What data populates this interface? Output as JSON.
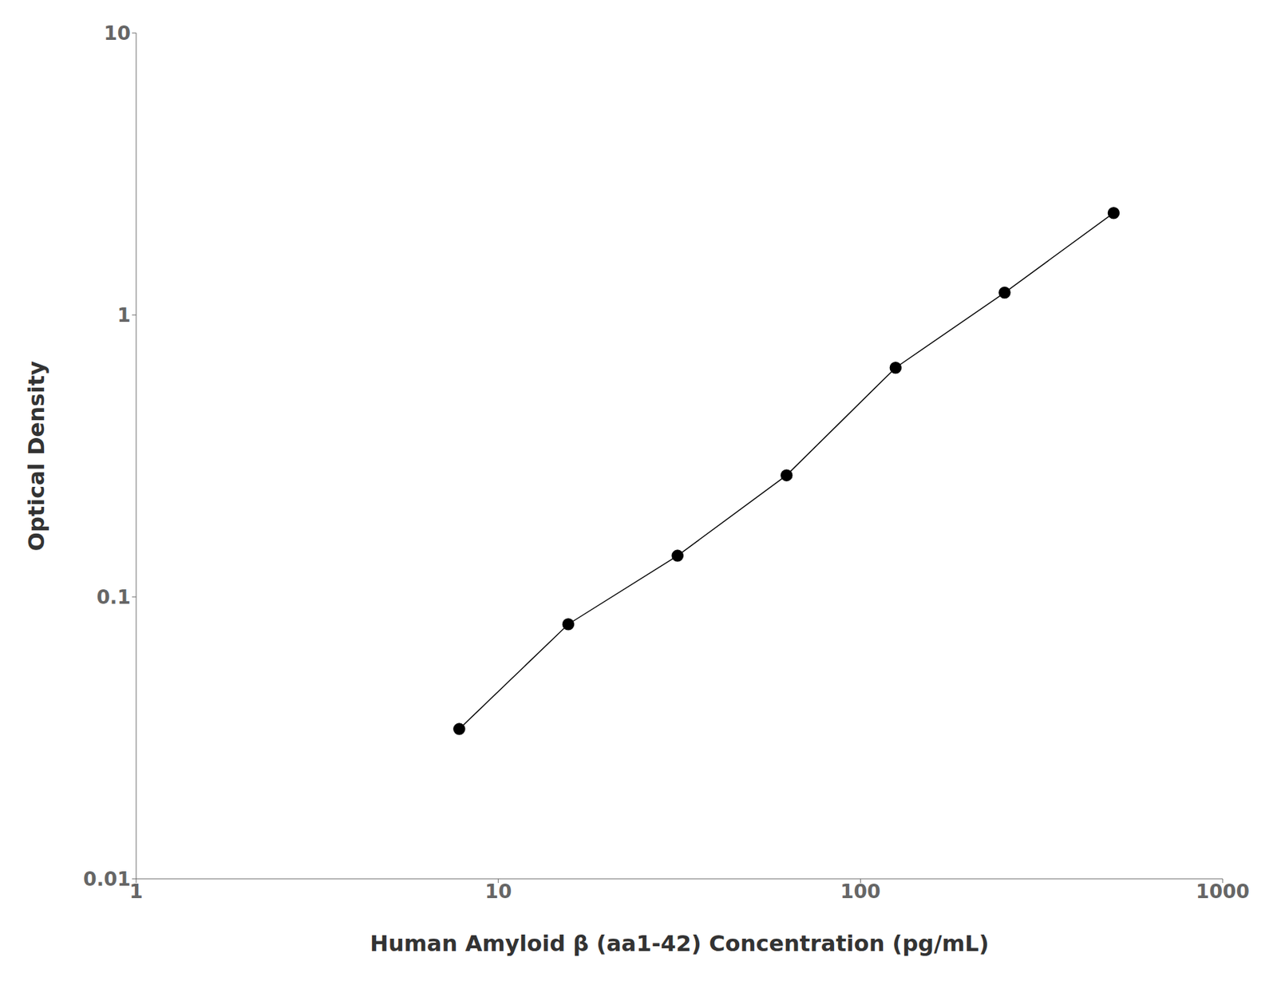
{
  "chart_data": {
    "type": "line",
    "x": [
      7.8,
      15.6,
      31.25,
      62.5,
      125,
      250,
      500
    ],
    "values": [
      0.034,
      0.08,
      0.14,
      0.27,
      0.65,
      1.2,
      2.3
    ],
    "xlabel": "Human Amyloid β (aa1-42) Concentration (pg/mL)",
    "ylabel": "Optical Density",
    "xlim": [
      1,
      1000
    ],
    "ylim": [
      0.01,
      10
    ],
    "xticks": [
      1,
      10,
      100,
      1000
    ],
    "yticks": [
      0.01,
      0.1,
      1,
      10
    ],
    "log": true,
    "color": "#000000",
    "marker": "circle",
    "grid": false
  }
}
